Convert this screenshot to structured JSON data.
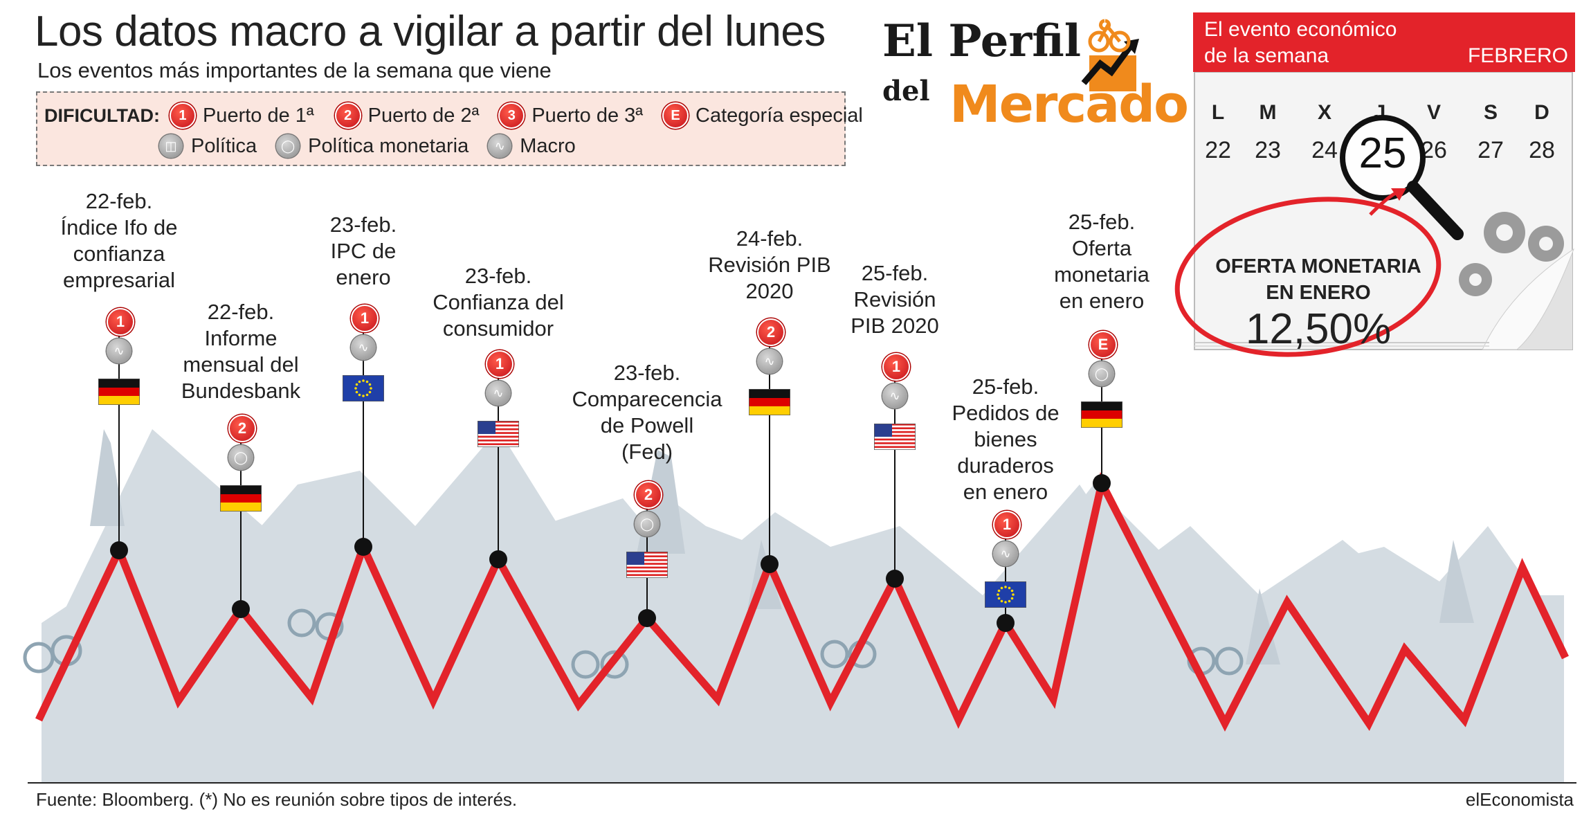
{
  "header": {
    "title": "Los datos macro a vigilar a partir del lunes",
    "subtitle": "Los eventos más importantes de la semana que viene"
  },
  "legend": {
    "title": "DIFICULTAD:",
    "levels": [
      {
        "badge": "1",
        "label": "Puerto de 1ª"
      },
      {
        "badge": "2",
        "label": "Puerto de 2ª"
      },
      {
        "badge": "3",
        "label": "Puerto de 3ª"
      },
      {
        "badge": "E",
        "label": "Categoría especial"
      }
    ],
    "types": [
      {
        "icon": "politics-icon",
        "label": "Política"
      },
      {
        "icon": "monetary-policy-icon",
        "label": "Política monetaria"
      },
      {
        "icon": "macro-icon",
        "label": "Macro"
      }
    ]
  },
  "brand": {
    "line1": "El Perfil",
    "line2": "del",
    "line3": "Mercado"
  },
  "calendar": {
    "header_line1": "El evento económico",
    "header_line2": "de la semana",
    "month": "FEBRERO",
    "days": [
      {
        "name": "L",
        "num": "22"
      },
      {
        "name": "M",
        "num": "23"
      },
      {
        "name": "X",
        "num": "24"
      },
      {
        "name": "J",
        "num": "25"
      },
      {
        "name": "V",
        "num": "26"
      },
      {
        "name": "S",
        "num": "27"
      },
      {
        "name": "D",
        "num": "28"
      }
    ],
    "highlighted_day": "25"
  },
  "highlight": {
    "label": "OFERTA MONETARIA EN ENERO",
    "value": "12,50%"
  },
  "events": [
    {
      "date": "22-feb.",
      "lines": [
        "Índice Ifo de",
        "confianza",
        "empresarial"
      ],
      "difficulty": "1",
      "type": "macro-icon",
      "country": "Alemania"
    },
    {
      "date": "22-feb.",
      "lines": [
        "Informe",
        "mensual del",
        "Bundesbank"
      ],
      "difficulty": "2",
      "type": "monetary-policy-icon",
      "country": "Alemania"
    },
    {
      "date": "23-feb.",
      "lines": [
        "IPC de",
        "enero"
      ],
      "difficulty": "1",
      "type": "macro-icon",
      "country": "Eurozona"
    },
    {
      "date": "23-feb.",
      "lines": [
        "Confianza del",
        "consumidor"
      ],
      "difficulty": "1",
      "type": "macro-icon",
      "country": "EEUU"
    },
    {
      "date": "23-feb.",
      "lines": [
        "Comparecencia",
        "de Powell",
        "(Fed)"
      ],
      "difficulty": "2",
      "type": "monetary-policy-icon",
      "country": "EEUU"
    },
    {
      "date": "24-feb.",
      "lines": [
        "Revisión PIB",
        "2020"
      ],
      "difficulty": "2",
      "type": "macro-icon",
      "country": "Alemania"
    },
    {
      "date": "25-feb.",
      "lines": [
        "Revisión",
        "PIB 2020"
      ],
      "difficulty": "1",
      "type": "macro-icon",
      "country": "EEUU"
    },
    {
      "date": "25-feb.",
      "lines": [
        "Pedidos de",
        "bienes",
        "duraderos",
        "en enero"
      ],
      "difficulty": "1",
      "type": "macro-icon",
      "country": "Eurozona"
    },
    {
      "date": "25-feb.",
      "lines": [
        "Oferta",
        "monetaria",
        "en enero"
      ],
      "difficulty": "E",
      "type": "monetary-policy-icon",
      "country": "Alemania"
    }
  ],
  "footer": {
    "source": "Fuente: Bloomberg. (*) No es reunión sobre tipos de interés.",
    "brand": "elEconomista"
  },
  "colors": {
    "accent_red": "#e3232a",
    "brand_orange": "#f08a1c",
    "mountain": "#d4dce2",
    "legend_bg": "#fbe6df"
  }
}
